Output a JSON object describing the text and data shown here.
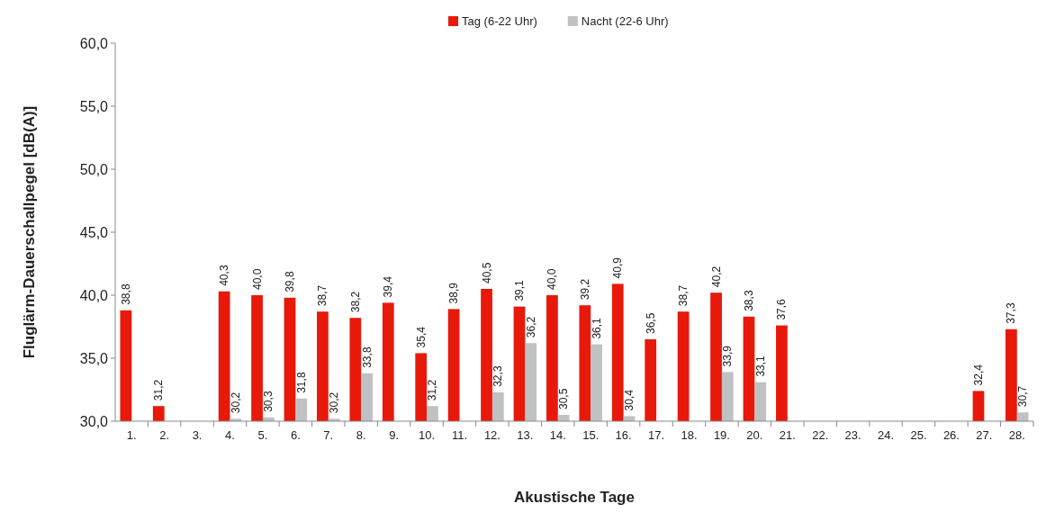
{
  "chart_data": {
    "type": "bar",
    "xlabel": "Akustische Tage",
    "ylabel": "Fluglärm-Dauerschallpegel [dB(A)]",
    "categories": [
      "1.",
      "2.",
      "3.",
      "4.",
      "5.",
      "6.",
      "7.",
      "8.",
      "9.",
      "10.",
      "11.",
      "12.",
      "13.",
      "14.",
      "15.",
      "16.",
      "17.",
      "18.",
      "19.",
      "20.",
      "21.",
      "22.",
      "23.",
      "24.",
      "25.",
      "26.",
      "27.",
      "28."
    ],
    "series": [
      {
        "name": "Tag (6-22 Uhr)",
        "color": "#e8190a",
        "values": [
          38.8,
          31.2,
          null,
          40.3,
          40.0,
          39.8,
          38.7,
          38.2,
          39.4,
          35.4,
          38.9,
          40.5,
          39.1,
          40.0,
          39.2,
          40.9,
          36.5,
          38.7,
          40.2,
          38.3,
          37.6,
          null,
          null,
          null,
          null,
          null,
          32.4,
          37.3
        ],
        "value_labels": [
          "38,8",
          "31,2",
          null,
          "40,3",
          "40,0",
          "39,8",
          "38,7",
          "38,2",
          "39,4",
          "35,4",
          "38,9",
          "40,5",
          "39,1",
          "40,0",
          "39,2",
          "40,9",
          "36,5",
          "38,7",
          "40,2",
          "38,3",
          "37,6",
          null,
          null,
          null,
          null,
          null,
          "32,4",
          "37,3"
        ]
      },
      {
        "name": "Nacht (22-6 Uhr)",
        "color": "#bfc1c3",
        "values": [
          null,
          null,
          null,
          30.2,
          30.3,
          31.8,
          30.2,
          33.8,
          null,
          31.2,
          null,
          32.3,
          36.2,
          30.5,
          36.1,
          30.4,
          null,
          null,
          33.9,
          33.1,
          null,
          null,
          null,
          null,
          null,
          null,
          null,
          30.7
        ],
        "value_labels": [
          null,
          null,
          null,
          "30,2",
          "30,3",
          "31,8",
          "30,2",
          "33,8",
          null,
          "31,2",
          null,
          "32,3",
          "36,2",
          "30,5",
          "36,1",
          "30,4",
          null,
          null,
          "33,9",
          "33,1",
          null,
          null,
          null,
          null,
          null,
          null,
          null,
          "30,7"
        ]
      }
    ],
    "ylim": [
      30,
      60
    ],
    "yticks": [
      {
        "value": 30,
        "label": "30,0"
      },
      {
        "value": 35,
        "label": "35,0"
      },
      {
        "value": 40,
        "label": "40,0"
      },
      {
        "value": 45,
        "label": "45,0"
      },
      {
        "value": 50,
        "label": "50,0"
      },
      {
        "value": 55,
        "label": "55,0"
      },
      {
        "value": 60,
        "label": "60,0"
      }
    ],
    "grid": false,
    "legend": "top"
  }
}
